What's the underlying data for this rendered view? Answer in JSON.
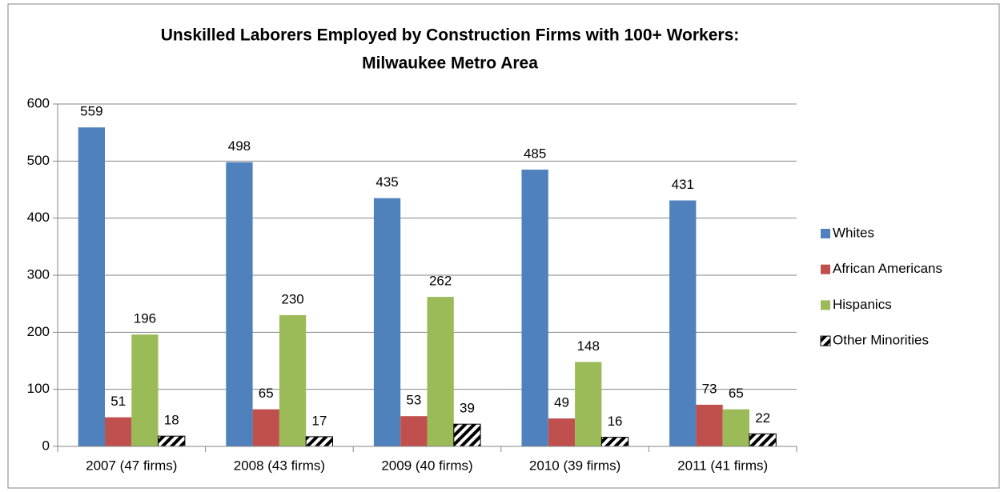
{
  "chart_data": {
    "type": "bar",
    "title": [
      "Unskilled Laborers Employed by Construction Firms with 100+ Workers:",
      "Milwaukee Metro Area"
    ],
    "categories": [
      "2007 (47 firms)",
      "2008 (43 firms)",
      "2009 (40 firms)",
      "2010 (39 firms)",
      "2011 (41 firms)"
    ],
    "series": [
      {
        "name": "Whites",
        "color": "#4f81bd",
        "values": [
          559,
          498,
          435,
          485,
          431
        ]
      },
      {
        "name": "African Americans",
        "color": "#c0504d",
        "values": [
          51,
          65,
          53,
          49,
          73
        ]
      },
      {
        "name": "Hispanics",
        "color": "#9bbb59",
        "values": [
          196,
          230,
          262,
          148,
          65
        ]
      },
      {
        "name": "Other Minorities",
        "color": "#000000",
        "pattern": "hatch",
        "values": [
          18,
          17,
          39,
          16,
          22
        ]
      }
    ],
    "ylim": [
      0,
      600
    ],
    "yticks": [
      0,
      100,
      200,
      300,
      400,
      500,
      600
    ],
    "grid": true,
    "legend": "right"
  }
}
